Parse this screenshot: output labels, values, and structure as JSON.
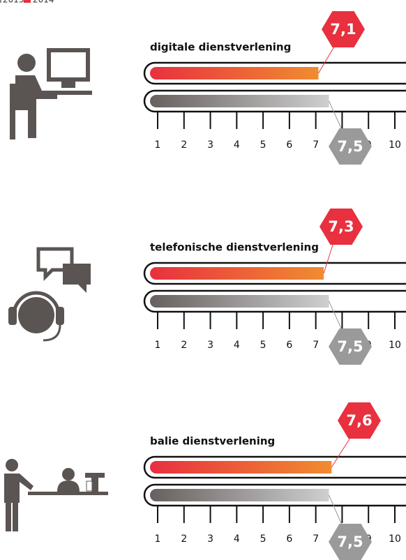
{
  "chart_data": [
    {
      "type": "bar",
      "title": "digitale dienstverlening",
      "series": [
        {
          "name": "2014",
          "color": "#e8303f",
          "values": [
            7.1
          ],
          "value_labels": [
            "7,1"
          ]
        },
        {
          "name": "2013",
          "color": "#8f8f8f",
          "values": [
            7.5
          ],
          "value_labels": [
            "7,5"
          ]
        }
      ],
      "xlim": [
        1,
        10
      ],
      "xticks": [
        1,
        2,
        3,
        4,
        5,
        6,
        7,
        8,
        9,
        10
      ]
    },
    {
      "type": "bar",
      "title": "telefonische dienstverlening",
      "series": [
        {
          "color": "#e8303f",
          "values": [
            7.3
          ],
          "value_labels": [
            "7,3"
          ]
        },
        {
          "color": "#8f8f8f",
          "values": [
            7.5
          ],
          "value_labels": [
            "7,5"
          ]
        }
      ],
      "xlim": [
        1,
        10
      ],
      "xticks": [
        1,
        2,
        3,
        4,
        5,
        6,
        7,
        8,
        9,
        10
      ]
    },
    {
      "type": "bar",
      "title": "balie dienstverlening",
      "series": [
        {
          "color": "#e8303f",
          "values": [
            7.6
          ],
          "value_labels": [
            "7,6"
          ]
        },
        {
          "color": "#8f8f8f",
          "values": [
            7.5
          ],
          "value_labels": [
            "7,5"
          ]
        }
      ],
      "xlim": [
        1,
        10
      ],
      "xticks": [
        1,
        2,
        3,
        4,
        5,
        6,
        7,
        8,
        9,
        10
      ]
    }
  ]
}
